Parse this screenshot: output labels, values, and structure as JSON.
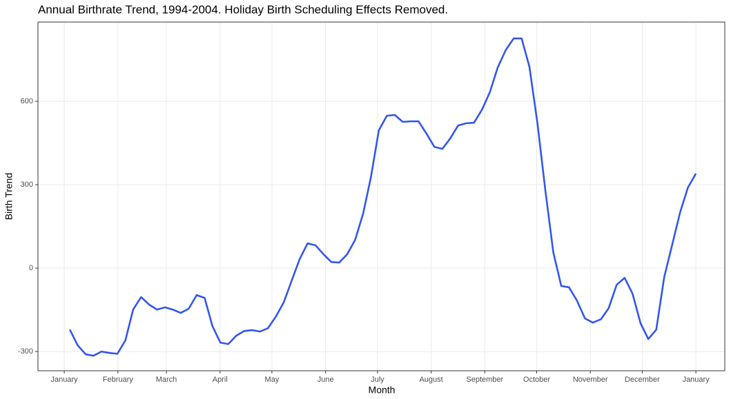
{
  "chart_data": {
    "type": "line",
    "title": "Annual Birthrate Trend, 1994-2004.  Holiday Birth Scheduling Effects Removed.",
    "x_label": "Month",
    "y_label": "Birth Trend",
    "x": [
      3.2,
      7.8,
      12.4,
      16.9,
      21.5,
      26.1,
      30.7,
      35.3,
      39.8,
      44.4,
      49.0,
      53.6,
      58.2,
      62.7,
      67.3,
      71.9,
      76.5,
      81.1,
      85.6,
      90.2,
      94.8,
      99.4,
      104.0,
      108.5,
      113.1,
      117.7,
      122.3,
      126.9,
      131.4,
      136.0,
      140.6,
      145.2,
      149.8,
      154.3,
      158.9,
      163.5,
      168.1,
      172.7,
      177.2,
      181.8,
      186.4,
      191.0,
      195.6,
      200.1,
      204.7,
      209.3,
      213.9,
      218.5,
      223.0,
      227.6,
      232.2,
      236.8,
      241.4,
      245.9,
      250.5,
      255.1,
      259.7,
      264.3,
      268.8,
      273.4,
      278.0,
      282.6,
      287.2,
      291.7,
      296.3,
      300.9,
      305.5,
      310.1,
      314.6,
      319.2,
      323.8,
      328.4,
      333.0,
      337.5,
      342.1,
      346.7,
      351.3,
      355.9,
      360.4,
      365.0
    ],
    "series": [
      {
        "name": "Birth Trend",
        "color": "#3355ee",
        "values": [
          -221,
          -278,
          -310,
          -315,
          -300,
          -305,
          -308,
          -260,
          -149,
          -104,
          -131,
          -149,
          -141,
          -149,
          -161,
          -146,
          -97,
          -107,
          -208,
          -268,
          -273,
          -243,
          -226,
          -223,
          -228,
          -216,
          -174,
          -122,
          -45,
          32,
          89,
          82,
          50,
          22,
          20,
          50,
          102,
          196,
          327,
          496,
          548,
          551,
          526,
          528,
          528,
          484,
          436,
          429,
          466,
          513,
          521,
          523,
          570,
          632,
          722,
          784,
          826,
          826,
          724,
          523,
          280,
          57,
          -64,
          -69,
          -117,
          -181,
          -196,
          -184,
          -144,
          -60,
          -35,
          -92,
          -198,
          -255,
          -221,
          -32,
          84,
          201,
          290,
          340
        ]
      }
    ],
    "xlim": [
      -15.2,
      381.7
    ],
    "ylim": [
      -369,
      885
    ],
    "xticks": [
      {
        "value": 0,
        "label": "January"
      },
      {
        "value": 31,
        "label": "February"
      },
      {
        "value": 59,
        "label": "March"
      },
      {
        "value": 90,
        "label": "April"
      },
      {
        "value": 120,
        "label": "May"
      },
      {
        "value": 151,
        "label": "June"
      },
      {
        "value": 181,
        "label": "July"
      },
      {
        "value": 212,
        "label": "August"
      },
      {
        "value": 243,
        "label": "September"
      },
      {
        "value": 273,
        "label": "October"
      },
      {
        "value": 304,
        "label": "November"
      },
      {
        "value": 334,
        "label": "December"
      },
      {
        "value": 365,
        "label": "January"
      }
    ],
    "yticks": [
      -300,
      0,
      300,
      600
    ],
    "grid": true
  }
}
